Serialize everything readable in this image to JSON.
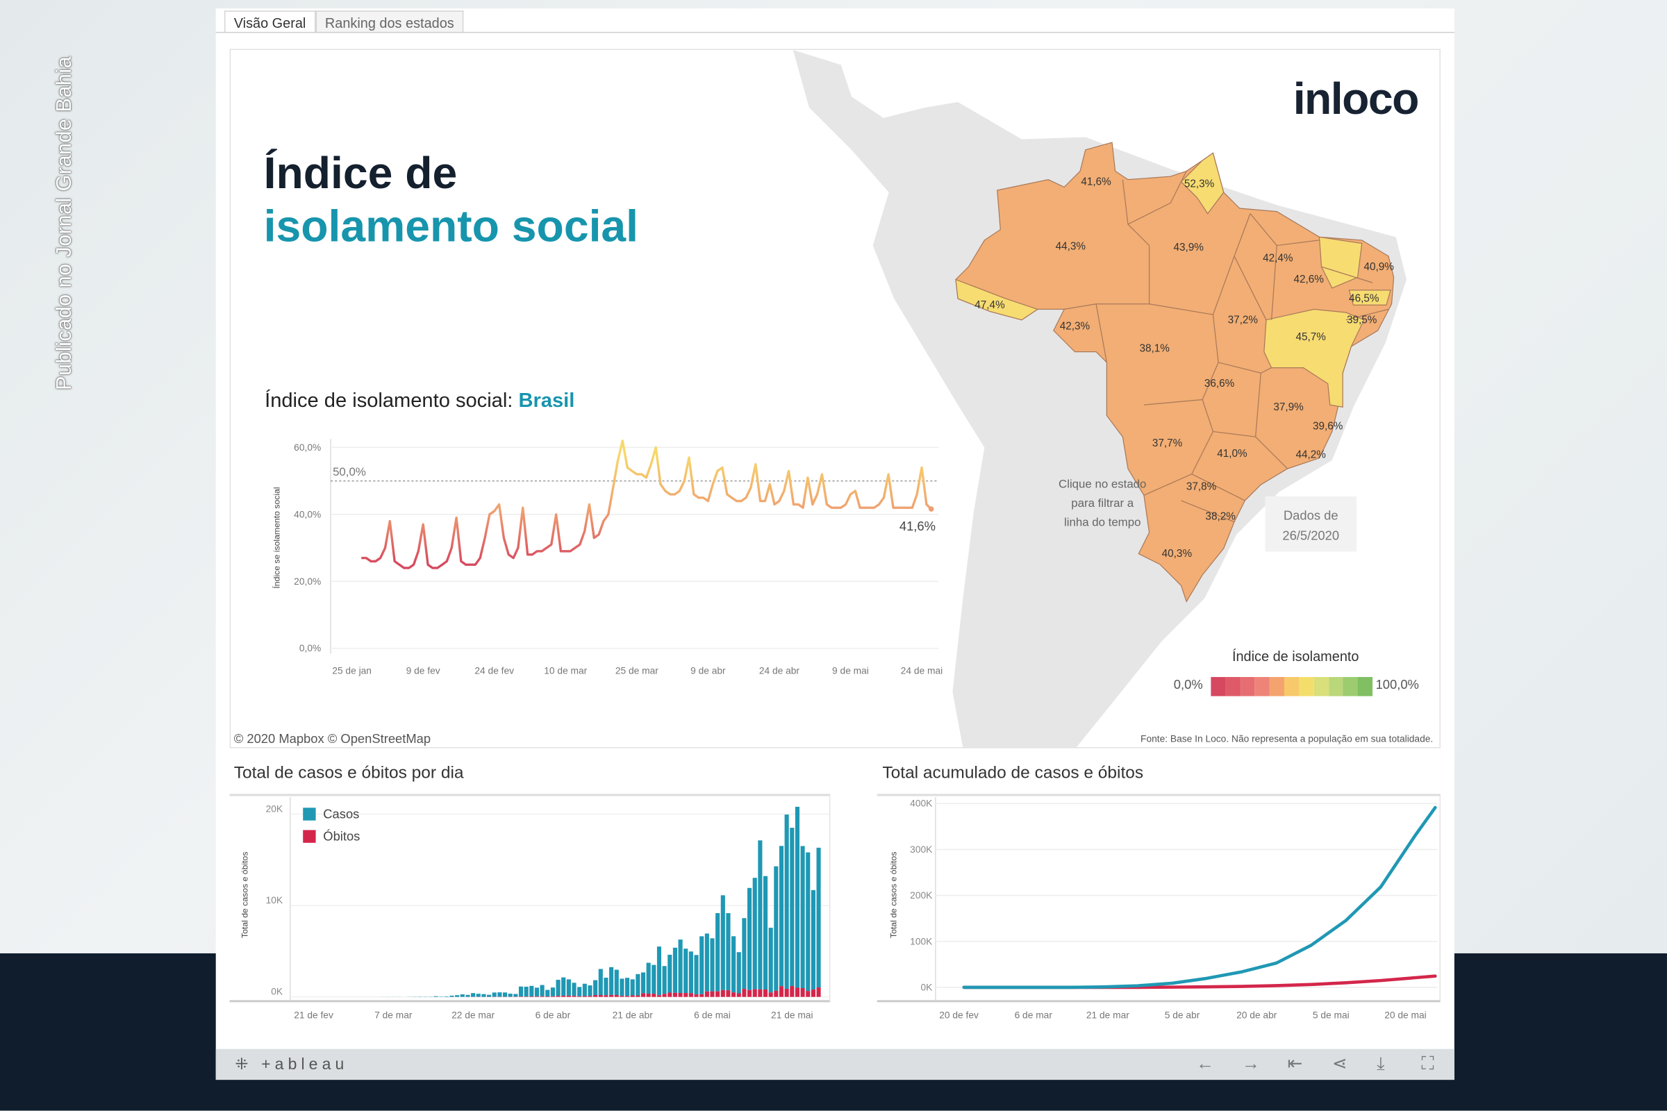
{
  "watermark": "Publicado no Jornal Grande Bahia",
  "tabs": [
    {
      "label": "Visão Geral",
      "active": true
    },
    {
      "label": "Ranking dos estados",
      "active": false
    }
  ],
  "header": {
    "title_line1": "Índice de",
    "title_line2": "isolamento social",
    "logo": "inloco"
  },
  "line_chart_title": {
    "prefix": "Índice de isolamento social: ",
    "region": "Brasil"
  },
  "map": {
    "state_values": [
      "41,6%",
      "52,3%",
      "44,3%",
      "43,9%",
      "42,4%",
      "40,9%",
      "42,6%",
      "46,5%",
      "39,5%",
      "47,4%",
      "42,3%",
      "37,2%",
      "45,7%",
      "38,1%",
      "36,6%",
      "37,9%",
      "39,6%",
      "37,7%",
      "41,0%",
      "44,2%",
      "37,8%",
      "38,2%",
      "40,3%"
    ],
    "hint": [
      "Clique no estado",
      "para filtrar a",
      "linha do tempo"
    ],
    "date_box": [
      "Dados de",
      "26/5/2020"
    ],
    "legend": {
      "title": "Índice de isolamento",
      "min": "0,0%",
      "max": "100,0%",
      "colors": [
        "#d6485f",
        "#de5a68",
        "#e66d71",
        "#ee8478",
        "#f4a36f",
        "#f7c96a",
        "#f3de6c",
        "#d9df7a",
        "#bad77a",
        "#9ccc6f",
        "#80bf62"
      ]
    },
    "colors": {
      "orange": "#f2ae74",
      "yellow": "#f7dc72"
    },
    "attribution": "© 2020 Mapbox © OpenStreetMap",
    "source": "Fonte: Base In Loco. Não representa a população em sua totalidade."
  },
  "chart_data": [
    {
      "type": "line",
      "title": "Índice de isolamento social: Brasil",
      "ylabel": "Índice se isolamento social",
      "yticks": [
        "0,0%",
        "20,0%",
        "40,0%",
        "60,0%"
      ],
      "ylim": [
        0,
        60
      ],
      "xticks": [
        {
          "date": "25/1",
          "label": "25 de jan"
        },
        {
          "date": "9/2",
          "label": "9 de fev"
        },
        {
          "date": "24/2",
          "label": "24 de fev"
        },
        {
          "date": "10/3",
          "label": "10 de mar"
        },
        {
          "date": "25/3",
          "label": "25 de mar"
        },
        {
          "date": "9/4",
          "label": "9 de abr"
        },
        {
          "date": "24/4",
          "label": "24 de abr"
        },
        {
          "date": "9/5",
          "label": "9 de mai"
        },
        {
          "date": "24/5",
          "label": "24 de mai"
        }
      ],
      "reference_line": {
        "value": 50,
        "label": "50,0%"
      },
      "last_label": "41,6%",
      "x_range": [
        "27/1",
        "26/5"
      ],
      "values": [
        27,
        27,
        26,
        26,
        27,
        30,
        38,
        26,
        25,
        24,
        24,
        25,
        29,
        37,
        25,
        24,
        24,
        25,
        26,
        30,
        39,
        26,
        25,
        25,
        25,
        27,
        33,
        40,
        41,
        43,
        33,
        28,
        27,
        30,
        42,
        28,
        28,
        29,
        29,
        30,
        31,
        40,
        29,
        29,
        29,
        30,
        31,
        35,
        43,
        33,
        34,
        38,
        40,
        48,
        56,
        62,
        54,
        53,
        52,
        52,
        51,
        55,
        60,
        49,
        47,
        46,
        46,
        47,
        50,
        57,
        46,
        45,
        45,
        44,
        49,
        53,
        54,
        46,
        45,
        44,
        44,
        45,
        48,
        55,
        44,
        44,
        49,
        43,
        44,
        47,
        53,
        43,
        43,
        42,
        51,
        43,
        46,
        52,
        43,
        42,
        42,
        42,
        43,
        46,
        47,
        42,
        42,
        42,
        42,
        43,
        45,
        52,
        42,
        42,
        42,
        42,
        42,
        46,
        54,
        43,
        41.6
      ],
      "color_scale": [
        "#d6485f",
        "#f0a070",
        "#f7d86a"
      ]
    },
    {
      "type": "bar",
      "title": "Total de casos e óbitos por dia",
      "ylabel": "Total de casos e óbitos",
      "yticks": [
        "0K",
        "10K",
        "20K"
      ],
      "ylim": [
        0,
        20000
      ],
      "xticks": [
        {
          "date": "21/2",
          "label": "21 de fev"
        },
        {
          "date": "7/3",
          "label": "7 de mar"
        },
        {
          "date": "22/3",
          "label": "22 de mar"
        },
        {
          "date": "6/4",
          "label": "6 de abr"
        },
        {
          "date": "21/4",
          "label": "21 de abr"
        },
        {
          "date": "6/5",
          "label": "6 de mai"
        },
        {
          "date": "21/5",
          "label": "21 de mai"
        }
      ],
      "x_range": [
        "1/3",
        "26/5"
      ],
      "series": [
        {
          "name": "Casos",
          "color": "#1f98b4",
          "values": [
            0,
            0,
            0,
            1,
            5,
            6,
            6,
            6,
            0,
            9,
            18,
            25,
            21,
            23,
            79,
            34,
            57,
            137,
            193,
            283,
            224,
            418,
            345,
            310,
            232,
            482,
            502,
            487,
            352,
            323,
            1138,
            1119,
            1208,
            1012,
            1304,
            770,
            1031,
            1873,
            2136,
            1922,
            1546,
            1089,
            1442,
            1261,
            1832,
            3058,
            2105,
            3257,
            2976,
            1996,
            2089,
            1927,
            2498,
            2678,
            3735,
            3503,
            5514,
            3379,
            4613,
            5385,
            6276,
            5281,
            4970,
            4588,
            6633,
            6935,
            6412,
            9167,
            11121,
            9167,
            6638,
            4898,
            8620,
            11923,
            13028,
            17126,
            13220,
            7569,
            14288,
            16517,
            19951,
            18508,
            20803,
            16508,
            15813,
            11687,
            16324
          ]
        },
        {
          "name": "Óbitos",
          "color": "#d4264b",
          "values": [
            0,
            0,
            0,
            0,
            0,
            0,
            0,
            0,
            0,
            0,
            0,
            0,
            0,
            0,
            0,
            0,
            1,
            2,
            4,
            4,
            7,
            7,
            9,
            12,
            11,
            20,
            19,
            17,
            22,
            23,
            42,
            40,
            58,
            60,
            73,
            54,
            67,
            114,
            133,
            141,
            115,
            68,
            99,
            105,
            204,
            204,
            188,
            217,
            206,
            115,
            113,
            166,
            165,
            407,
            357,
            346,
            189,
            338,
            474,
            449,
            435,
            428,
            421,
            275,
            296,
            600,
            615,
            610,
            751,
            730,
            496,
            396,
            881,
            749,
            844,
            824,
            816,
            485,
            674,
            1179,
            888,
            1188,
            1001,
            965,
            653,
            807,
            1039
          ]
        }
      ]
    },
    {
      "type": "line",
      "title": "Total acumulado de casos e óbitos",
      "ylabel": "Total de casos e óbitos",
      "yticks": [
        "0K",
        "100K",
        "200K",
        "300K",
        "400K"
      ],
      "ylim": [
        0,
        400000
      ],
      "xticks": [
        {
          "date": "20/2",
          "label": "20 de fev"
        },
        {
          "date": "6/3",
          "label": "6 de mar"
        },
        {
          "date": "21/3",
          "label": "21 de mar"
        },
        {
          "date": "5/4",
          "label": "5 de abr"
        },
        {
          "date": "20/4",
          "label": "20 de abr"
        },
        {
          "date": "5/5",
          "label": "5 de mai"
        },
        {
          "date": "20/5",
          "label": "20 de mai"
        }
      ],
      "series": [
        {
          "name": "Casos",
          "color": "#1f98b4",
          "points": [
            [
              "21/2",
              0
            ],
            [
              "26/2",
              1
            ],
            [
              "6/3",
              13
            ],
            [
              "13/3",
              98
            ],
            [
              "20/3",
              904
            ],
            [
              "27/3",
              3417
            ],
            [
              "3/4",
              9056
            ],
            [
              "10/4",
              19638
            ],
            [
              "17/4",
              33682
            ],
            [
              "24/4",
              52995
            ],
            [
              "1/5",
              91589
            ],
            [
              "8/5",
              145328
            ],
            [
              "15/5",
              218223
            ],
            [
              "22/5",
              330890
            ],
            [
              "26/5",
              391222
            ]
          ]
        },
        {
          "name": "Óbitos",
          "color": "#d4264b",
          "points": [
            [
              "21/2",
              0
            ],
            [
              "13/3",
              0
            ],
            [
              "20/3",
              11
            ],
            [
              "27/3",
              92
            ],
            [
              "3/4",
              359
            ],
            [
              "10/4",
              1057
            ],
            [
              "17/4",
              2141
            ],
            [
              "24/4",
              3670
            ],
            [
              "1/5",
              6329
            ],
            [
              "8/5",
              9897
            ],
            [
              "15/5",
              14817
            ],
            [
              "22/5",
              21048
            ],
            [
              "26/5",
              24512
            ]
          ]
        }
      ]
    }
  ],
  "toolbar": {
    "brand": "+ableau",
    "icons": [
      "undo-icon",
      "redo-icon",
      "revert-icon",
      "share-icon",
      "download-icon",
      "fullscreen-icon"
    ],
    "glyphs": [
      "←",
      "→",
      "⇤",
      "⋖",
      "⤓",
      "⛶"
    ]
  }
}
